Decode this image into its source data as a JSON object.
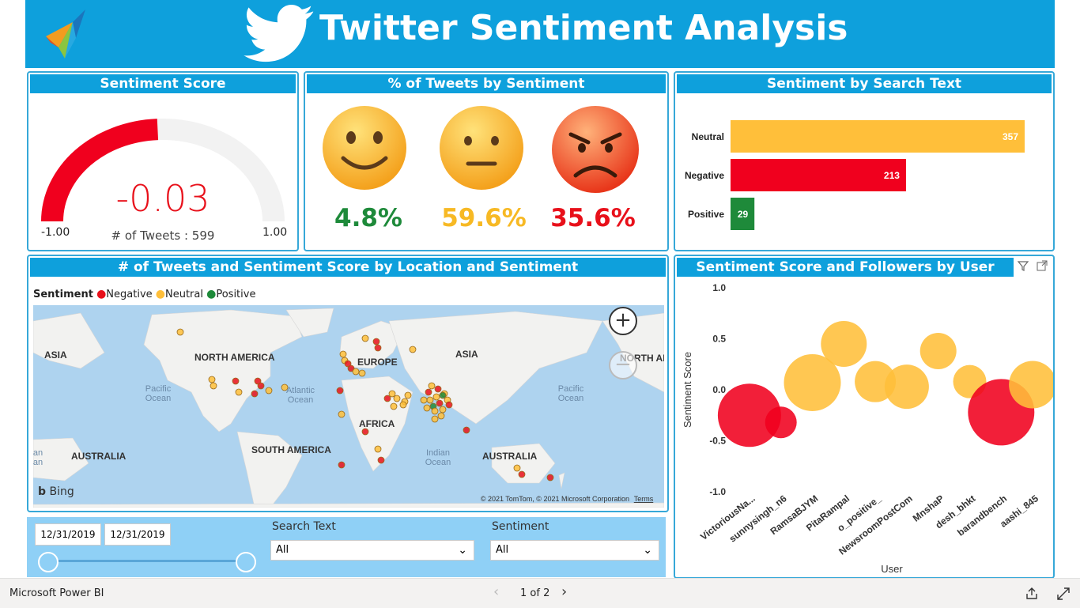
{
  "header": {
    "title": "Twitter Sentiment Analysis"
  },
  "sentiment_score": {
    "title": "Sentiment Score",
    "value": "-0.03",
    "min": "-1.00",
    "max": "1.00",
    "tweets_label": "# of Tweets : 599",
    "fill_fraction": 0.485
  },
  "pct_tweets": {
    "title": "% of Tweets by Sentiment",
    "items": [
      {
        "face": "happy-emoji-icon",
        "value": "4.8%",
        "color": "#1e8a3a"
      },
      {
        "face": "neutral-emoji-icon",
        "value": "59.6%",
        "color": "#f7b924"
      },
      {
        "face": "angry-emoji-icon",
        "value": "35.6%",
        "color": "#e8101a"
      }
    ]
  },
  "search_text_chart": {
    "title": "Sentiment by Search Text",
    "chart_data": {
      "type": "bar",
      "categories": [
        "Neutral",
        "Negative",
        "Positive"
      ],
      "values": [
        357,
        213,
        29
      ],
      "colors": [
        "#ffbf3a",
        "#f0001e",
        "#1e8a3a"
      ]
    }
  },
  "map": {
    "title": "# of Tweets and Sentiment Score by Location and Sentiment",
    "legend_title": "Sentiment",
    "legend": [
      {
        "label": "Negative",
        "color": "#e8101a"
      },
      {
        "label": "Neutral",
        "color": "#ffbf3a"
      },
      {
        "label": "Positive",
        "color": "#1e8a3a"
      }
    ],
    "labels": {
      "asia_left": "ASIA",
      "north_america": "NORTH AMERICA",
      "europe": "EUROPE",
      "asia": "ASIA",
      "north_ame_right": "NORTH AME",
      "pacific_left": "Pacific\nOcean",
      "atlantic": "Atlantic\nOcean",
      "pacific_right": "Pacific\nOcean",
      "africa": "AFRICA",
      "australia_left": "AUSTRALIA",
      "south_america": "SOUTH AMERICA",
      "indian": "Indian\nOcean",
      "australia": "AUSTRALIA",
      "edge_an1": "an",
      "edge_an2": "an"
    },
    "bing": "Bing",
    "copyright": "© 2021 TomTom, © 2021 Microsoft Corporation",
    "terms": "Terms"
  },
  "bubble_chart": {
    "title": "Sentiment Score and Followers by User",
    "chart_data": {
      "type": "scatter",
      "xlabel": "User",
      "ylabel": "Sentiment Score",
      "ylim": [
        -1.0,
        1.0
      ],
      "yticks": [
        "1.0",
        "0.5",
        "0.0",
        "-0.5",
        "-1.0"
      ],
      "categories": [
        "VictoriousNa...",
        "sunnysingh_n6",
        "RamsaBJYM",
        "PitaRampal",
        "o_positive_",
        "NewsroomPostCom",
        "MnshaP",
        "desh_bhkt",
        "barandbench",
        "aashi_845"
      ],
      "points": [
        {
          "user": "VictoriousNa...",
          "y": -0.25,
          "color": "#f0001e",
          "size": 40
        },
        {
          "user": "sunnysingh_n6",
          "y": -0.32,
          "color": "#f0001e",
          "size": 20
        },
        {
          "user": "RamsaBJYM",
          "y": 0.07,
          "color": "#ffbf3a",
          "size": 36
        },
        {
          "user": "PitaRampal",
          "y": 0.45,
          "color": "#ffbf3a",
          "size": 29
        },
        {
          "user": "o_positive_",
          "y": 0.08,
          "color": "#ffbf3a",
          "size": 26
        },
        {
          "user": "NewsroomPostCom",
          "y": 0.03,
          "color": "#ffbf3a",
          "size": 28
        },
        {
          "user": "MnshaP",
          "y": 0.38,
          "color": "#ffbf3a",
          "size": 23
        },
        {
          "user": "desh_bhkt",
          "y": 0.08,
          "color": "#ffbf3a",
          "size": 21
        },
        {
          "user": "barandbench",
          "y": -0.22,
          "color": "#f0001e",
          "size": 42
        },
        {
          "user": "aashi_845",
          "y": 0.05,
          "color": "#ffbf3a",
          "size": 30
        }
      ]
    }
  },
  "slicers": {
    "date_from": "12/31/2019",
    "date_to": "12/31/2019",
    "search_label": "Search Text",
    "search_value": "All",
    "sentiment_label": "Sentiment",
    "sentiment_value": "All"
  },
  "footer": {
    "app": "Microsoft Power BI",
    "page": "1 of 2"
  }
}
